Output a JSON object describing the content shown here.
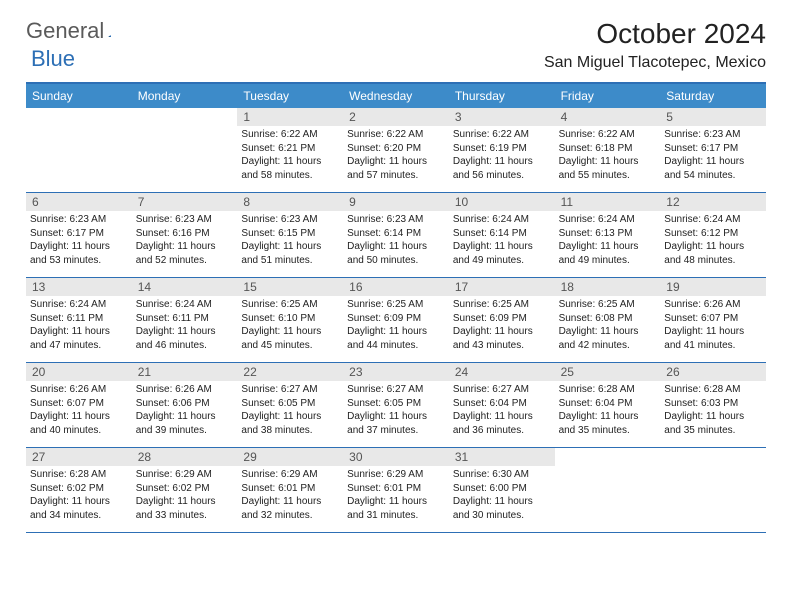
{
  "logo": {
    "part1": "General",
    "part2": "Blue"
  },
  "title": "October 2024",
  "location": "San Miguel Tlacotepec, Mexico",
  "colors": {
    "header_bg": "#3d8bc9",
    "border": "#2d6fb5",
    "daynum_bg": "#e8e8e8",
    "text": "#222222",
    "logo_gray": "#5a5a5a",
    "logo_blue": "#2d6fb5"
  },
  "dow": [
    "Sunday",
    "Monday",
    "Tuesday",
    "Wednesday",
    "Thursday",
    "Friday",
    "Saturday"
  ],
  "weeks": [
    [
      {
        "n": "",
        "sr": "",
        "ss": "",
        "dl": ""
      },
      {
        "n": "",
        "sr": "",
        "ss": "",
        "dl": ""
      },
      {
        "n": "1",
        "sr": "Sunrise: 6:22 AM",
        "ss": "Sunset: 6:21 PM",
        "dl": "Daylight: 11 hours and 58 minutes."
      },
      {
        "n": "2",
        "sr": "Sunrise: 6:22 AM",
        "ss": "Sunset: 6:20 PM",
        "dl": "Daylight: 11 hours and 57 minutes."
      },
      {
        "n": "3",
        "sr": "Sunrise: 6:22 AM",
        "ss": "Sunset: 6:19 PM",
        "dl": "Daylight: 11 hours and 56 minutes."
      },
      {
        "n": "4",
        "sr": "Sunrise: 6:22 AM",
        "ss": "Sunset: 6:18 PM",
        "dl": "Daylight: 11 hours and 55 minutes."
      },
      {
        "n": "5",
        "sr": "Sunrise: 6:23 AM",
        "ss": "Sunset: 6:17 PM",
        "dl": "Daylight: 11 hours and 54 minutes."
      }
    ],
    [
      {
        "n": "6",
        "sr": "Sunrise: 6:23 AM",
        "ss": "Sunset: 6:17 PM",
        "dl": "Daylight: 11 hours and 53 minutes."
      },
      {
        "n": "7",
        "sr": "Sunrise: 6:23 AM",
        "ss": "Sunset: 6:16 PM",
        "dl": "Daylight: 11 hours and 52 minutes."
      },
      {
        "n": "8",
        "sr": "Sunrise: 6:23 AM",
        "ss": "Sunset: 6:15 PM",
        "dl": "Daylight: 11 hours and 51 minutes."
      },
      {
        "n": "9",
        "sr": "Sunrise: 6:23 AM",
        "ss": "Sunset: 6:14 PM",
        "dl": "Daylight: 11 hours and 50 minutes."
      },
      {
        "n": "10",
        "sr": "Sunrise: 6:24 AM",
        "ss": "Sunset: 6:14 PM",
        "dl": "Daylight: 11 hours and 49 minutes."
      },
      {
        "n": "11",
        "sr": "Sunrise: 6:24 AM",
        "ss": "Sunset: 6:13 PM",
        "dl": "Daylight: 11 hours and 49 minutes."
      },
      {
        "n": "12",
        "sr": "Sunrise: 6:24 AM",
        "ss": "Sunset: 6:12 PM",
        "dl": "Daylight: 11 hours and 48 minutes."
      }
    ],
    [
      {
        "n": "13",
        "sr": "Sunrise: 6:24 AM",
        "ss": "Sunset: 6:11 PM",
        "dl": "Daylight: 11 hours and 47 minutes."
      },
      {
        "n": "14",
        "sr": "Sunrise: 6:24 AM",
        "ss": "Sunset: 6:11 PM",
        "dl": "Daylight: 11 hours and 46 minutes."
      },
      {
        "n": "15",
        "sr": "Sunrise: 6:25 AM",
        "ss": "Sunset: 6:10 PM",
        "dl": "Daylight: 11 hours and 45 minutes."
      },
      {
        "n": "16",
        "sr": "Sunrise: 6:25 AM",
        "ss": "Sunset: 6:09 PM",
        "dl": "Daylight: 11 hours and 44 minutes."
      },
      {
        "n": "17",
        "sr": "Sunrise: 6:25 AM",
        "ss": "Sunset: 6:09 PM",
        "dl": "Daylight: 11 hours and 43 minutes."
      },
      {
        "n": "18",
        "sr": "Sunrise: 6:25 AM",
        "ss": "Sunset: 6:08 PM",
        "dl": "Daylight: 11 hours and 42 minutes."
      },
      {
        "n": "19",
        "sr": "Sunrise: 6:26 AM",
        "ss": "Sunset: 6:07 PM",
        "dl": "Daylight: 11 hours and 41 minutes."
      }
    ],
    [
      {
        "n": "20",
        "sr": "Sunrise: 6:26 AM",
        "ss": "Sunset: 6:07 PM",
        "dl": "Daylight: 11 hours and 40 minutes."
      },
      {
        "n": "21",
        "sr": "Sunrise: 6:26 AM",
        "ss": "Sunset: 6:06 PM",
        "dl": "Daylight: 11 hours and 39 minutes."
      },
      {
        "n": "22",
        "sr": "Sunrise: 6:27 AM",
        "ss": "Sunset: 6:05 PM",
        "dl": "Daylight: 11 hours and 38 minutes."
      },
      {
        "n": "23",
        "sr": "Sunrise: 6:27 AM",
        "ss": "Sunset: 6:05 PM",
        "dl": "Daylight: 11 hours and 37 minutes."
      },
      {
        "n": "24",
        "sr": "Sunrise: 6:27 AM",
        "ss": "Sunset: 6:04 PM",
        "dl": "Daylight: 11 hours and 36 minutes."
      },
      {
        "n": "25",
        "sr": "Sunrise: 6:28 AM",
        "ss": "Sunset: 6:04 PM",
        "dl": "Daylight: 11 hours and 35 minutes."
      },
      {
        "n": "26",
        "sr": "Sunrise: 6:28 AM",
        "ss": "Sunset: 6:03 PM",
        "dl": "Daylight: 11 hours and 35 minutes."
      }
    ],
    [
      {
        "n": "27",
        "sr": "Sunrise: 6:28 AM",
        "ss": "Sunset: 6:02 PM",
        "dl": "Daylight: 11 hours and 34 minutes."
      },
      {
        "n": "28",
        "sr": "Sunrise: 6:29 AM",
        "ss": "Sunset: 6:02 PM",
        "dl": "Daylight: 11 hours and 33 minutes."
      },
      {
        "n": "29",
        "sr": "Sunrise: 6:29 AM",
        "ss": "Sunset: 6:01 PM",
        "dl": "Daylight: 11 hours and 32 minutes."
      },
      {
        "n": "30",
        "sr": "Sunrise: 6:29 AM",
        "ss": "Sunset: 6:01 PM",
        "dl": "Daylight: 11 hours and 31 minutes."
      },
      {
        "n": "31",
        "sr": "Sunrise: 6:30 AM",
        "ss": "Sunset: 6:00 PM",
        "dl": "Daylight: 11 hours and 30 minutes."
      },
      {
        "n": "",
        "sr": "",
        "ss": "",
        "dl": ""
      },
      {
        "n": "",
        "sr": "",
        "ss": "",
        "dl": ""
      }
    ]
  ]
}
